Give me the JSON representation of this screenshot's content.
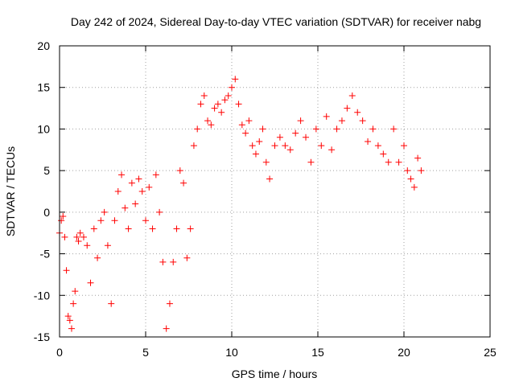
{
  "chart_data": {
    "type": "scatter",
    "title": "Day 242 of 2024, Sidereal Day-to-day VTEC variation (SDTVAR) for receiver nabg",
    "xlabel": "GPS time / hours",
    "ylabel": "SDTVAR / TECUs",
    "xlim": [
      0,
      25
    ],
    "ylim": [
      -15,
      20
    ],
    "xticks": [
      0,
      5,
      10,
      15,
      20,
      25
    ],
    "yticks": [
      -15,
      -10,
      -5,
      0,
      5,
      10,
      15,
      20
    ],
    "xtick_labels": [
      "0",
      "5",
      "10",
      "15",
      "20",
      "25"
    ],
    "ytick_labels": [
      "-15",
      "-10",
      "-5",
      "0",
      "5",
      "10",
      "15",
      "20"
    ],
    "grid": true,
    "marker": "+",
    "marker_color": "#ff0000",
    "series": [
      {
        "name": "SDTVAR",
        "color": "#ff0000",
        "x": [
          0.0,
          0.1,
          0.2,
          0.3,
          0.4,
          0.5,
          0.6,
          0.7,
          0.8,
          0.9,
          1.0,
          1.1,
          1.2,
          1.4,
          1.6,
          1.8,
          2.0,
          2.2,
          2.4,
          2.6,
          2.8,
          3.0,
          3.2,
          3.4,
          3.6,
          3.8,
          4.0,
          4.2,
          4.4,
          4.6,
          4.8,
          5.0,
          5.2,
          5.4,
          5.6,
          5.8,
          6.0,
          6.2,
          6.4,
          6.6,
          6.8,
          7.0,
          7.2,
          7.4,
          7.6,
          7.8,
          8.0,
          8.2,
          8.4,
          8.6,
          8.8,
          9.0,
          9.2,
          9.4,
          9.6,
          9.8,
          10.0,
          10.2,
          10.4,
          10.6,
          10.8,
          11.0,
          11.2,
          11.4,
          11.6,
          11.8,
          12.0,
          12.2,
          12.5,
          12.8,
          13.1,
          13.4,
          13.7,
          14.0,
          14.3,
          14.6,
          14.9,
          15.2,
          15.5,
          15.8,
          16.1,
          16.4,
          16.7,
          17.0,
          17.3,
          17.6,
          17.9,
          18.2,
          18.5,
          18.8,
          19.1,
          19.4,
          19.7,
          20.0,
          20.2,
          20.4,
          20.6,
          20.8,
          21.0
        ],
        "y": [
          -2.5,
          -1.0,
          -0.5,
          -3.0,
          -7.0,
          -12.5,
          -13.0,
          -14.0,
          -11.0,
          -9.5,
          -3.0,
          -3.5,
          -2.5,
          -3.0,
          -4.0,
          -8.5,
          -2.0,
          -5.5,
          -1.0,
          0.0,
          -4.0,
          -11.0,
          -1.0,
          2.5,
          4.5,
          0.5,
          -2.0,
          3.5,
          1.0,
          4.0,
          2.5,
          -1.0,
          3.0,
          -2.0,
          4.5,
          0.0,
          -6.0,
          -14.0,
          -11.0,
          -6.0,
          -2.0,
          5.0,
          3.5,
          -5.5,
          -2.0,
          8.0,
          10.0,
          13.0,
          14.0,
          11.0,
          10.5,
          12.5,
          13.0,
          12.0,
          13.5,
          14.0,
          15.0,
          16.0,
          13.0,
          10.5,
          9.5,
          11.0,
          8.0,
          7.0,
          8.5,
          10.0,
          6.0,
          4.0,
          8.0,
          9.0,
          8.0,
          7.5,
          9.5,
          11.0,
          9.0,
          6.0,
          10.0,
          8.0,
          11.5,
          7.5,
          10.0,
          11.0,
          12.5,
          14.0,
          12.0,
          11.0,
          8.5,
          10.0,
          8.0,
          7.0,
          6.0,
          10.0,
          6.0,
          8.0,
          5.0,
          4.0,
          3.0,
          6.5,
          5.0
        ]
      }
    ]
  }
}
